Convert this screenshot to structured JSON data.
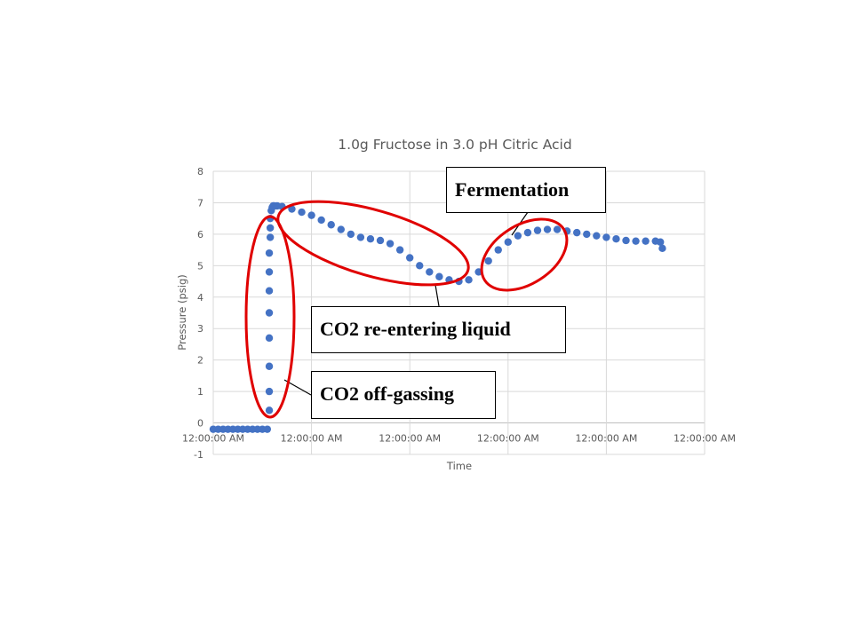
{
  "chart_data": {
    "type": "scatter",
    "title": "1.0g Fructose in 3.0 pH Citric Acid",
    "xlabel": "Time",
    "ylabel": "Pressure (psig)",
    "x_ticks": [
      "12:00:00 AM",
      "12:00:00 AM",
      "12:00:00 AM",
      "12:00:00 AM",
      "12:00:00 AM",
      "12:00:00 AM"
    ],
    "y_ticks": [
      "8",
      "7",
      "6",
      "5",
      "4",
      "3",
      "2",
      "1",
      "0",
      "-1"
    ],
    "ylim": [
      -1,
      8
    ],
    "xlim": [
      0,
      5
    ],
    "grid": true,
    "legend": "none",
    "series_color": "#4472C4",
    "series": [
      {
        "x": [
          0.0,
          0.05,
          0.1,
          0.15,
          0.2,
          0.25,
          0.3,
          0.35,
          0.4,
          0.45,
          0.5,
          0.55,
          0.57,
          0.57,
          0.57,
          0.57,
          0.57,
          0.57,
          0.57,
          0.57,
          0.58,
          0.58,
          0.58,
          0.59,
          0.6,
          0.61,
          0.62,
          0.65,
          0.7,
          0.8,
          0.9,
          1.0,
          1.1,
          1.2,
          1.3,
          1.4,
          1.5,
          1.6,
          1.7,
          1.8,
          1.9,
          2.0,
          2.1,
          2.2,
          2.3,
          2.4,
          2.5,
          2.6,
          2.7,
          2.8,
          2.9,
          3.0,
          3.1,
          3.2,
          3.3,
          3.4,
          3.5,
          3.6,
          3.7,
          3.8,
          3.9,
          4.0,
          4.1,
          4.2,
          4.3,
          4.4,
          4.5,
          4.55,
          4.57
        ],
        "y": [
          -0.2,
          -0.2,
          -0.2,
          -0.2,
          -0.2,
          -0.2,
          -0.2,
          -0.2,
          -0.2,
          -0.2,
          -0.2,
          -0.2,
          0.4,
          1.0,
          1.8,
          2.7,
          3.5,
          4.2,
          4.8,
          5.4,
          5.9,
          6.2,
          6.5,
          6.75,
          6.85,
          6.9,
          6.9,
          6.9,
          6.88,
          6.8,
          6.7,
          6.6,
          6.45,
          6.3,
          6.15,
          6.0,
          5.9,
          5.85,
          5.8,
          5.7,
          5.5,
          5.25,
          5.0,
          4.8,
          4.65,
          4.55,
          4.5,
          4.55,
          4.8,
          5.15,
          5.5,
          5.75,
          5.95,
          6.05,
          6.12,
          6.15,
          6.15,
          6.1,
          6.05,
          6.0,
          5.95,
          5.9,
          5.85,
          5.8,
          5.78,
          5.78,
          5.78,
          5.75,
          5.55
        ]
      }
    ],
    "annotations": [
      {
        "text": "Fermentation"
      },
      {
        "text": "CO2 re-entering liquid"
      },
      {
        "text": "CO2 off-gassing"
      }
    ],
    "annotation_ellipse_color": "#E00000"
  }
}
